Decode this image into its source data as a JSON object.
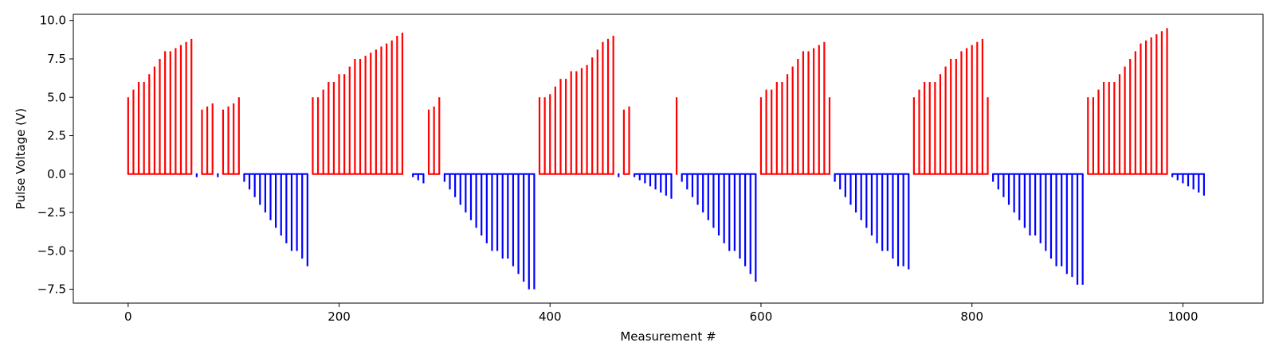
{
  "chart_data": {
    "type": "bar",
    "title": "",
    "xlabel": "Measurement #",
    "ylabel": "Pulse Voltage (V)",
    "xlim": [
      -52,
      1076
    ],
    "ylim": [
      -8.4,
      10.4
    ],
    "x_ticks": [
      0,
      200,
      400,
      600,
      800,
      1000
    ],
    "y_ticks": [
      -7.5,
      -5.0,
      -2.5,
      0.0,
      2.5,
      5.0,
      7.5,
      10.0
    ],
    "y_tick_labels": [
      "−7.5",
      "−5.0",
      "−2.5",
      "0.0",
      "2.5",
      "5.0",
      "7.5",
      "10.0"
    ],
    "grid": false,
    "colors": {
      "positive": "#ff0000",
      "negative": "#0000ff"
    },
    "bar_spacing": 5,
    "series": [
      {
        "x_start": 0,
        "color": "positive",
        "values": [
          5.0,
          5.5,
          6.0,
          6.0,
          6.5,
          7.0,
          7.5,
          8.0,
          8.0,
          8.2,
          8.4,
          8.6,
          8.8
        ]
      },
      {
        "x_start": 65,
        "color": "negative",
        "values": [
          -0.2
        ]
      },
      {
        "x_start": 70,
        "color": "positive",
        "values": [
          4.2,
          4.4,
          4.6
        ]
      },
      {
        "x_start": 85,
        "color": "negative",
        "values": [
          -0.2
        ]
      },
      {
        "x_start": 90,
        "color": "positive",
        "values": [
          4.2,
          4.4,
          4.6,
          5.0
        ]
      },
      {
        "x_start": 110,
        "color": "negative",
        "values": [
          -0.5,
          -1.0,
          -1.5,
          -2.0,
          -2.5,
          -3.0,
          -3.5,
          -4.0,
          -4.5,
          -5.0,
          -5.0,
          -5.5,
          -6.0
        ]
      },
      {
        "x_start": 175,
        "color": "positive",
        "values": [
          5.0,
          5.0,
          5.5,
          6.0,
          6.0,
          6.5,
          6.5,
          7.0,
          7.5,
          7.5,
          7.7,
          7.9,
          8.1,
          8.3,
          8.5,
          8.7,
          9.0,
          9.2
        ]
      },
      {
        "x_start": 270,
        "color": "negative",
        "values": [
          -0.2,
          -0.4,
          -0.6
        ]
      },
      {
        "x_start": 285,
        "color": "positive",
        "values": [
          4.2,
          4.4,
          5.0
        ]
      },
      {
        "x_start": 300,
        "color": "negative",
        "values": [
          -0.5,
          -1.0,
          -1.5,
          -2.0,
          -2.5,
          -3.0,
          -3.5,
          -4.0,
          -4.5,
          -5.0,
          -5.0,
          -5.5,
          -5.5,
          -6.0,
          -6.5,
          -7.0,
          -7.5,
          -7.5
        ]
      },
      {
        "x_start": 390,
        "color": "positive",
        "values": [
          5.0,
          5.0,
          5.2,
          5.7,
          6.2,
          6.2,
          6.7,
          6.7,
          6.9,
          7.1,
          7.6,
          8.1,
          8.6,
          8.8,
          9.0
        ]
      },
      {
        "x_start": 465,
        "color": "negative",
        "values": [
          -0.2
        ]
      },
      {
        "x_start": 470,
        "color": "positive",
        "values": [
          4.2,
          4.4
        ]
      },
      {
        "x_start": 480,
        "color": "negative",
        "values": [
          -0.2,
          -0.4,
          -0.6,
          -0.8,
          -1.0,
          -1.2,
          -1.4,
          -1.6
        ]
      },
      {
        "x_start": 520,
        "color": "positive",
        "values": [
          5.0
        ]
      },
      {
        "x_start": 525,
        "color": "negative",
        "values": [
          -0.5,
          -1.0,
          -1.5,
          -2.0,
          -2.5,
          -3.0,
          -3.5,
          -4.0,
          -4.5,
          -5.0,
          -5.0,
          -5.5,
          -6.0,
          -6.5,
          -7.0
        ]
      },
      {
        "x_start": 600,
        "color": "positive",
        "values": [
          5.0,
          5.5,
          5.5,
          6.0,
          6.0,
          6.5,
          7.0,
          7.5,
          8.0,
          8.0,
          8.2,
          8.4,
          8.6,
          5.0
        ]
      },
      {
        "x_start": 670,
        "color": "negative",
        "values": [
          -0.5,
          -1.0,
          -1.5,
          -2.0,
          -2.5,
          -3.0,
          -3.5,
          -4.0,
          -4.5,
          -5.0,
          -5.0,
          -5.5,
          -6.0,
          -6.0,
          -6.2
        ]
      },
      {
        "x_start": 745,
        "color": "positive",
        "values": [
          5.0,
          5.5,
          6.0,
          6.0,
          6.0,
          6.5,
          7.0,
          7.5,
          7.5,
          8.0,
          8.2,
          8.4,
          8.6,
          8.8,
          5.0
        ]
      },
      {
        "x_start": 820,
        "color": "negative",
        "values": [
          -0.5,
          -1.0,
          -1.5,
          -2.0,
          -2.5,
          -3.0,
          -3.5,
          -4.0,
          -4.0,
          -4.5,
          -5.0,
          -5.5,
          -6.0,
          -6.0,
          -6.5,
          -6.7,
          -7.2,
          -7.2
        ]
      },
      {
        "x_start": 910,
        "color": "positive",
        "values": [
          5.0,
          5.0,
          5.5,
          6.0,
          6.0,
          6.0,
          6.5,
          7.0,
          7.5,
          8.0,
          8.5,
          8.7,
          8.9,
          9.1,
          9.3,
          9.5
        ]
      },
      {
        "x_start": 990,
        "color": "negative",
        "values": [
          -0.2,
          -0.4,
          -0.6,
          -0.8,
          -1.0,
          -1.2,
          -1.4
        ]
      }
    ]
  }
}
